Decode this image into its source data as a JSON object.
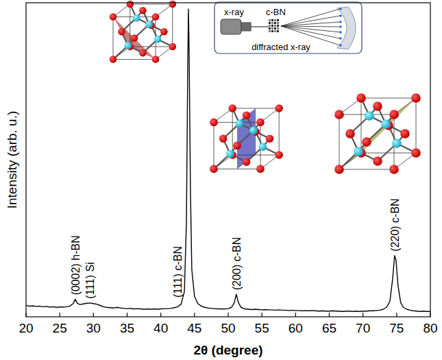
{
  "chart_data": {
    "type": "line",
    "x_label": "2θ (degree)",
    "y_label": "Intensity (arb. u.)",
    "xlim": [
      20,
      80
    ],
    "xticks": [
      20,
      25,
      30,
      35,
      40,
      45,
      50,
      55,
      60,
      65,
      70,
      75,
      80
    ],
    "ylim": [
      0,
      100
    ],
    "yticks": [],
    "tick_labels": "x",
    "grid": false,
    "color": "#000000",
    "x": [
      20,
      20.5,
      21,
      21.5,
      22,
      22.5,
      23,
      23.5,
      24,
      24.5,
      25,
      25.5,
      26,
      26.5,
      27,
      27.3,
      27.6,
      28,
      28.5,
      29,
      29.5,
      30,
      30.5,
      31,
      31.5,
      32,
      32.5,
      33,
      33.5,
      34,
      34.5,
      35,
      35.5,
      36,
      36.5,
      37,
      37.5,
      38,
      38.5,
      39,
      39.5,
      40,
      40.5,
      41,
      41.5,
      42,
      42.5,
      43,
      43.5,
      43.8,
      44.0,
      44.1,
      44.2,
      44.4,
      44.6,
      45,
      45.5,
      46,
      46.5,
      47,
      47.5,
      48,
      48.5,
      49,
      49.5,
      50,
      50.5,
      50.9,
      51.2,
      51.5,
      51.9,
      52.5,
      53,
      53.5,
      54,
      54.5,
      55,
      55.5,
      56,
      56.5,
      57,
      57.5,
      58,
      58.5,
      59,
      59.5,
      60,
      60.5,
      61,
      61.5,
      62,
      62.5,
      63,
      63.5,
      64,
      64.5,
      65,
      65.5,
      66,
      66.5,
      67,
      67.5,
      68,
      68.5,
      69,
      69.5,
      70,
      70.5,
      71,
      71.5,
      72,
      72.5,
      73,
      73.5,
      74,
      74.4,
      74.7,
      74.9,
      75.2,
      75.6,
      76,
      76.5,
      77,
      77.5,
      78,
      78.5,
      79,
      79.5,
      80
    ],
    "values": [
      3.6,
      3.4,
      3.5,
      3.3,
      3.4,
      3.2,
      3.3,
      3.1,
      3.2,
      3.0,
      3.1,
      3.1,
      3.2,
      3.4,
      4.2,
      5.6,
      4.3,
      3.9,
      4.1,
      4.3,
      4.4,
      4.2,
      4.0,
      3.6,
      3.2,
      3.0,
      2.9,
      2.8,
      3.0,
      2.8,
      2.7,
      2.6,
      2.7,
      2.5,
      2.6,
      2.5,
      2.4,
      2.5,
      2.4,
      2.5,
      2.4,
      2.5,
      2.6,
      2.6,
      2.7,
      2.9,
      3.2,
      4.0,
      8.0,
      30,
      80,
      98,
      85,
      40,
      15,
      6.5,
      4.2,
      3.4,
      3.0,
      2.8,
      2.7,
      2.6,
      2.5,
      2.5,
      2.5,
      2.6,
      3.0,
      4.5,
      7.2,
      4.6,
      3.0,
      2.5,
      2.4,
      2.3,
      2.4,
      2.3,
      2.2,
      2.3,
      2.2,
      2.2,
      2.1,
      2.2,
      2.1,
      2.1,
      2.0,
      2.1,
      2.0,
      2.0,
      1.9,
      2.0,
      1.9,
      2.0,
      1.9,
      1.8,
      1.9,
      1.8,
      1.8,
      1.9,
      1.8,
      1.8,
      1.7,
      1.8,
      1.8,
      1.7,
      1.8,
      1.7,
      1.8,
      1.8,
      1.9,
      1.9,
      2.0,
      2.1,
      2.4,
      3.0,
      5.0,
      12,
      19.5,
      18,
      10,
      4.5,
      3.0,
      2.4,
      2.1,
      1.9,
      1.8,
      1.7,
      1.8,
      1.7,
      1.7
    ],
    "annotations": [
      {
        "text": "(0002) h-BN",
        "x": 27.3
      },
      {
        "text": "(111) Si",
        "x": 29.5
      },
      {
        "text": "(111) c-BN",
        "x": 44.1
      },
      {
        "text": "(200) c-BN",
        "x": 51.2
      },
      {
        "text": "(220) c-BN",
        "x": 74.7
      }
    ],
    "inset_texts": [
      "x-ray",
      "c-BN",
      "diffracted x-ray"
    ]
  }
}
